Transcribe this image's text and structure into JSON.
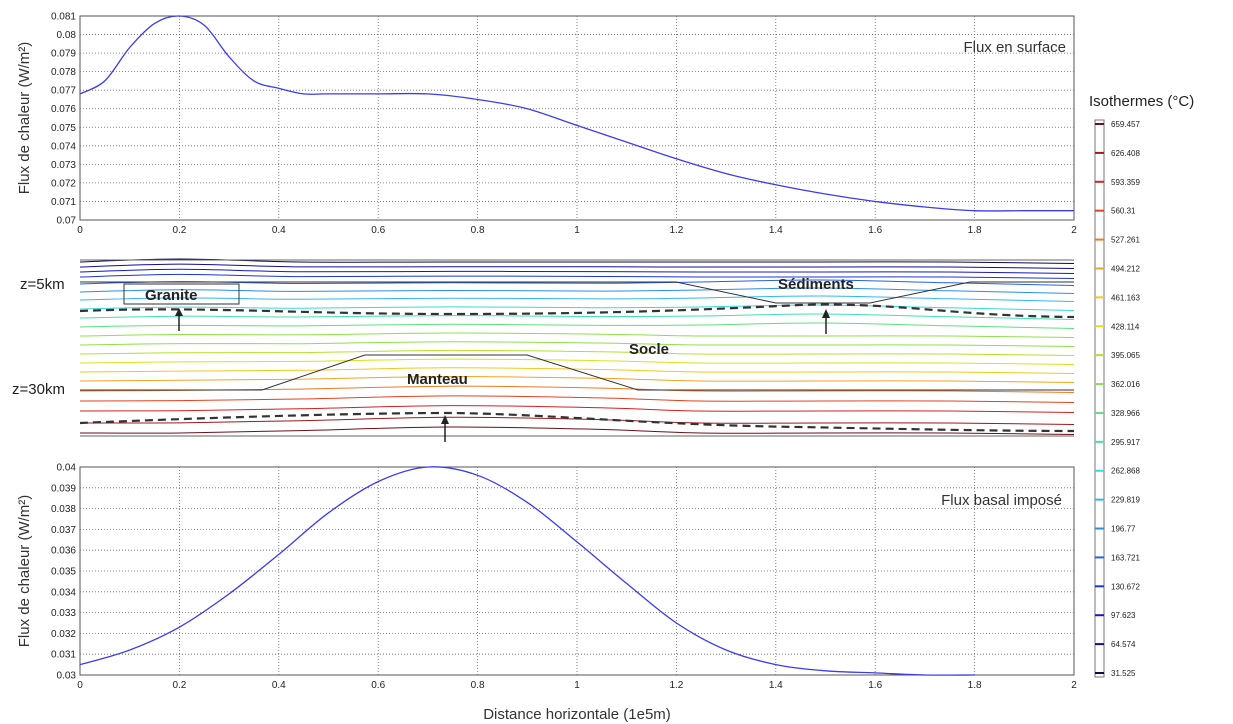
{
  "chart_data": [
    {
      "type": "line",
      "ylabel": "Flux de chaleur (W/m²)",
      "annotation": "Flux en surface",
      "ylim": [
        0.07,
        0.081
      ],
      "xlim": [
        0,
        2
      ],
      "grid": true,
      "yticks": [
        "0.07",
        "0.071",
        "0.072",
        "0.073",
        "0.074",
        "0.075",
        "0.076",
        "0.077",
        "0.078",
        "0.079",
        "0.08",
        "0.081"
      ],
      "xticks": [
        "0",
        "0.2",
        "0.4",
        "0.6",
        "0.8",
        "1",
        "1.2",
        "1.4",
        "1.6",
        "1.8",
        "2"
      ],
      "series": [
        {
          "color": "#3b3bf0",
          "x": [
            0,
            0.05,
            0.1,
            0.15,
            0.2,
            0.25,
            0.3,
            0.35,
            0.4,
            0.45,
            0.5,
            0.6,
            0.7,
            0.8,
            0.9,
            1.0,
            1.1,
            1.2,
            1.3,
            1.4,
            1.5,
            1.6,
            1.7,
            1.8,
            1.9,
            2.0
          ],
          "y": [
            0.0768,
            0.0775,
            0.0793,
            0.0806,
            0.081,
            0.0805,
            0.0788,
            0.0775,
            0.0771,
            0.0768,
            0.0768,
            0.0768,
            0.0768,
            0.0765,
            0.076,
            0.0751,
            0.0742,
            0.0733,
            0.0725,
            0.0719,
            0.0714,
            0.071,
            0.0707,
            0.0705,
            0.0705,
            0.0705
          ]
        }
      ]
    },
    {
      "type": "contour",
      "legend_title": "Isothermes (°C)",
      "labels": {
        "granite": "Granite",
        "sediments": "Sédiments",
        "socle": "Socle",
        "manteau": "Manteau",
        "z5": "z=5km",
        "z30": "z=30km"
      },
      "colorbar_levels": [
        "659.457",
        "626.408",
        "593.359",
        "560.31",
        "527.261",
        "494.212",
        "461.163",
        "428.114",
        "395.065",
        "362.016",
        "328.966",
        "295.917",
        "262.868",
        "229.819",
        "196.77",
        "163.721",
        "130.672",
        "97.623",
        "64.574",
        "31.525"
      ],
      "colorbar_colors": [
        "#6b0f1a",
        "#a01818",
        "#d42020",
        "#e8401c",
        "#f07a20",
        "#f4a41c",
        "#f2c818",
        "#dde018",
        "#b8e028",
        "#8ee04a",
        "#5ee080",
        "#40e0b4",
        "#38d8e0",
        "#30b8f0",
        "#2890e8",
        "#2064e0",
        "#1838d0",
        "#1818c0",
        "#101090",
        "#0a0a50"
      ]
    },
    {
      "type": "line",
      "ylabel": "Flux de chaleur (W/m²)",
      "xlabel": "Distance horizontale (1e5m)",
      "annotation": "Flux basal imposé",
      "ylim": [
        0.03,
        0.04
      ],
      "xlim": [
        0,
        2
      ],
      "grid": true,
      "yticks": [
        "0.03",
        "0.031",
        "0.032",
        "0.033",
        "0.034",
        "0.035",
        "0.036",
        "0.037",
        "0.038",
        "0.039",
        "0.04"
      ],
      "xticks": [
        "0",
        "0.2",
        "0.4",
        "0.6",
        "0.8",
        "1",
        "1.2",
        "1.4",
        "1.6",
        "1.8",
        "2"
      ],
      "series": [
        {
          "color": "#3b3bf0",
          "x": [
            0,
            0.1,
            0.2,
            0.3,
            0.4,
            0.5,
            0.6,
            0.7,
            0.8,
            0.9,
            1.0,
            1.1,
            1.2,
            1.3,
            1.4,
            1.5,
            1.6,
            1.7,
            1.8
          ],
          "y": [
            0.0305,
            0.0312,
            0.0323,
            0.0339,
            0.0358,
            0.0378,
            0.0393,
            0.04,
            0.0396,
            0.0383,
            0.0364,
            0.0344,
            0.0325,
            0.0312,
            0.0305,
            0.0302,
            0.0301,
            0.03,
            0.03
          ]
        }
      ]
    }
  ]
}
